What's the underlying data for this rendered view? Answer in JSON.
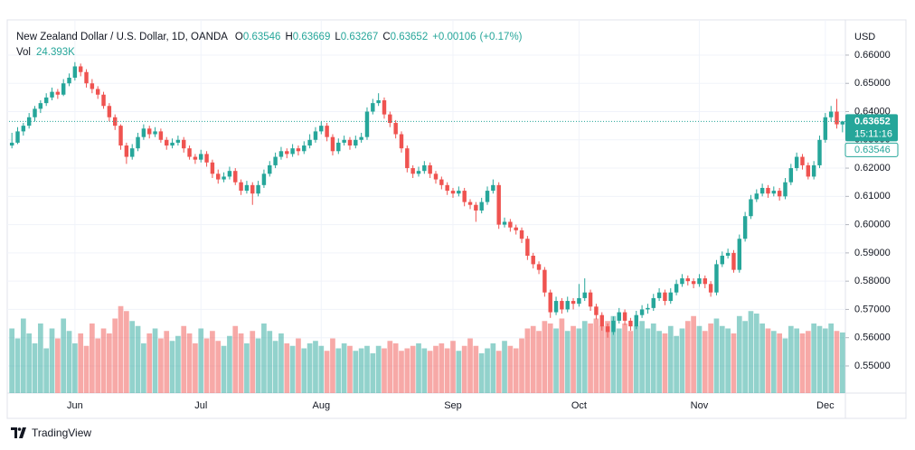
{
  "chart_data": {
    "type": "candlestick",
    "title": "New Zealand Dollar / U.S. Dollar, 1D, OANDA",
    "legend": [
      {
        "label": "O",
        "value": 0.63546
      },
      {
        "label": "H",
        "value": 0.63669
      },
      {
        "label": "L",
        "value": 0.63267
      },
      {
        "label": "C",
        "value": 0.63652
      }
    ],
    "change": 0.00106,
    "change_label": "+0.00106",
    "change_pct": 0.17,
    "change_pct_label": "(+0.17%)",
    "volume_name": "Vol",
    "volume_value_label": "24.393K",
    "y_axis_label": "USD",
    "up_color": "#26a69a",
    "down_color": "#ef5350",
    "ohlc": [
      [
        0.628,
        0.6325,
        0.627,
        0.629
      ],
      [
        0.629,
        0.6345,
        0.6285,
        0.633
      ],
      [
        0.633,
        0.636,
        0.6315,
        0.635
      ],
      [
        0.635,
        0.6395,
        0.634,
        0.638
      ],
      [
        0.638,
        0.642,
        0.6365,
        0.641
      ],
      [
        0.641,
        0.644,
        0.6395,
        0.643
      ],
      [
        0.643,
        0.6465,
        0.642,
        0.645
      ],
      [
        0.645,
        0.6485,
        0.644,
        0.647
      ],
      [
        0.647,
        0.648,
        0.6445,
        0.646
      ],
      [
        0.646,
        0.6515,
        0.6455,
        0.65
      ],
      [
        0.65,
        0.6535,
        0.649,
        0.652
      ],
      [
        0.652,
        0.6575,
        0.651,
        0.656
      ],
      [
        0.656,
        0.657,
        0.6525,
        0.654
      ],
      [
        0.654,
        0.655,
        0.6485,
        0.65
      ],
      [
        0.65,
        0.6515,
        0.6465,
        0.648
      ],
      [
        0.648,
        0.649,
        0.6445,
        0.646
      ],
      [
        0.646,
        0.647,
        0.641,
        0.642
      ],
      [
        0.642,
        0.643,
        0.6365,
        0.638
      ],
      [
        0.638,
        0.639,
        0.6335,
        0.635
      ],
      [
        0.635,
        0.6355,
        0.6265,
        0.628
      ],
      [
        0.628,
        0.629,
        0.6215,
        0.624
      ],
      [
        0.624,
        0.6285,
        0.623,
        0.627
      ],
      [
        0.627,
        0.6325,
        0.626,
        0.631
      ],
      [
        0.631,
        0.6355,
        0.63,
        0.634
      ],
      [
        0.634,
        0.635,
        0.6305,
        0.632
      ],
      [
        0.632,
        0.6345,
        0.631,
        0.633
      ],
      [
        0.633,
        0.634,
        0.629,
        0.63
      ],
      [
        0.63,
        0.631,
        0.6265,
        0.628
      ],
      [
        0.628,
        0.6305,
        0.627,
        0.629
      ],
      [
        0.629,
        0.6315,
        0.628,
        0.63
      ],
      [
        0.63,
        0.631,
        0.6255,
        0.627
      ],
      [
        0.627,
        0.628,
        0.623,
        0.624
      ],
      [
        0.624,
        0.625,
        0.6215,
        0.623
      ],
      [
        0.623,
        0.6265,
        0.622,
        0.625
      ],
      [
        0.625,
        0.626,
        0.6205,
        0.622
      ],
      [
        0.622,
        0.623,
        0.6165,
        0.618
      ],
      [
        0.618,
        0.6195,
        0.6145,
        0.616
      ],
      [
        0.616,
        0.6185,
        0.615,
        0.617
      ],
      [
        0.617,
        0.6205,
        0.616,
        0.619
      ],
      [
        0.619,
        0.62,
        0.614,
        0.615
      ],
      [
        0.615,
        0.616,
        0.6105,
        0.612
      ],
      [
        0.612,
        0.6155,
        0.611,
        0.614
      ],
      [
        0.614,
        0.615,
        0.607,
        0.611
      ],
      [
        0.611,
        0.6155,
        0.61,
        0.614
      ],
      [
        0.614,
        0.6195,
        0.613,
        0.618
      ],
      [
        0.618,
        0.6225,
        0.617,
        0.621
      ],
      [
        0.621,
        0.6255,
        0.62,
        0.624
      ],
      [
        0.624,
        0.6275,
        0.623,
        0.626
      ],
      [
        0.626,
        0.627,
        0.6235,
        0.625
      ],
      [
        0.625,
        0.6285,
        0.624,
        0.627
      ],
      [
        0.627,
        0.628,
        0.6245,
        0.626
      ],
      [
        0.626,
        0.6295,
        0.625,
        0.628
      ],
      [
        0.628,
        0.632,
        0.627,
        0.63
      ],
      [
        0.63,
        0.6345,
        0.629,
        0.633
      ],
      [
        0.633,
        0.6365,
        0.632,
        0.635
      ],
      [
        0.635,
        0.636,
        0.6295,
        0.631
      ],
      [
        0.631,
        0.632,
        0.6245,
        0.626
      ],
      [
        0.626,
        0.6305,
        0.625,
        0.629
      ],
      [
        0.629,
        0.6315,
        0.628,
        0.63
      ],
      [
        0.63,
        0.631,
        0.6265,
        0.628
      ],
      [
        0.628,
        0.6315,
        0.627,
        0.63
      ],
      [
        0.63,
        0.6325,
        0.629,
        0.631
      ],
      [
        0.631,
        0.6415,
        0.63,
        0.64
      ],
      [
        0.64,
        0.6445,
        0.639,
        0.643
      ],
      [
        0.643,
        0.6465,
        0.642,
        0.644
      ],
      [
        0.644,
        0.645,
        0.6375,
        0.639
      ],
      [
        0.639,
        0.64,
        0.6345,
        0.636
      ],
      [
        0.636,
        0.637,
        0.6305,
        0.632
      ],
      [
        0.632,
        0.633,
        0.6255,
        0.627
      ],
      [
        0.627,
        0.628,
        0.6185,
        0.62
      ],
      [
        0.62,
        0.621,
        0.6165,
        0.618
      ],
      [
        0.618,
        0.6205,
        0.617,
        0.619
      ],
      [
        0.619,
        0.6225,
        0.618,
        0.621
      ],
      [
        0.621,
        0.622,
        0.6165,
        0.618
      ],
      [
        0.618,
        0.619,
        0.6145,
        0.616
      ],
      [
        0.616,
        0.617,
        0.6125,
        0.614
      ],
      [
        0.614,
        0.615,
        0.6105,
        0.612
      ],
      [
        0.612,
        0.613,
        0.6095,
        0.611
      ],
      [
        0.611,
        0.6135,
        0.61,
        0.612
      ],
      [
        0.612,
        0.613,
        0.6065,
        0.608
      ],
      [
        0.608,
        0.609,
        0.6055,
        0.607
      ],
      [
        0.607,
        0.608,
        0.601,
        0.605
      ],
      [
        0.605,
        0.6095,
        0.604,
        0.608
      ],
      [
        0.608,
        0.6135,
        0.607,
        0.612
      ],
      [
        0.612,
        0.616,
        0.611,
        0.614
      ],
      [
        0.614,
        0.615,
        0.5985,
        0.6
      ],
      [
        0.6,
        0.6025,
        0.599,
        0.601
      ],
      [
        0.601,
        0.602,
        0.5975,
        0.599
      ],
      [
        0.599,
        0.6,
        0.5965,
        0.598
      ],
      [
        0.598,
        0.599,
        0.5935,
        0.595
      ],
      [
        0.595,
        0.596,
        0.5875,
        0.589
      ],
      [
        0.589,
        0.59,
        0.5845,
        0.586
      ],
      [
        0.586,
        0.587,
        0.5825,
        0.584
      ],
      [
        0.584,
        0.585,
        0.5745,
        0.576
      ],
      [
        0.576,
        0.577,
        0.567,
        0.569
      ],
      [
        0.569,
        0.5745,
        0.568,
        0.573
      ],
      [
        0.573,
        0.574,
        0.5685,
        0.57
      ],
      [
        0.57,
        0.5745,
        0.569,
        0.573
      ],
      [
        0.573,
        0.574,
        0.57,
        0.572
      ],
      [
        0.572,
        0.579,
        0.571,
        0.574
      ],
      [
        0.574,
        0.581,
        0.573,
        0.576
      ],
      [
        0.576,
        0.577,
        0.5695,
        0.571
      ],
      [
        0.571,
        0.572,
        0.5665,
        0.568
      ],
      [
        0.568,
        0.569,
        0.5625,
        0.564
      ],
      [
        0.564,
        0.565,
        0.56,
        0.562
      ],
      [
        0.562,
        0.5675,
        0.561,
        0.566
      ],
      [
        0.566,
        0.5705,
        0.565,
        0.569
      ],
      [
        0.569,
        0.57,
        0.5645,
        0.566
      ],
      [
        0.566,
        0.567,
        0.5625,
        0.564
      ],
      [
        0.564,
        0.5695,
        0.563,
        0.568
      ],
      [
        0.568,
        0.5715,
        0.567,
        0.57
      ],
      [
        0.57,
        0.572,
        0.5685,
        0.5705
      ],
      [
        0.5705,
        0.5755,
        0.5695,
        0.574
      ],
      [
        0.574,
        0.5775,
        0.573,
        0.576
      ],
      [
        0.576,
        0.577,
        0.5715,
        0.573
      ],
      [
        0.573,
        0.5775,
        0.572,
        0.576
      ],
      [
        0.576,
        0.5805,
        0.575,
        0.579
      ],
      [
        0.579,
        0.5825,
        0.578,
        0.581
      ],
      [
        0.581,
        0.582,
        0.5785,
        0.58
      ],
      [
        0.58,
        0.581,
        0.5775,
        0.579
      ],
      [
        0.579,
        0.5825,
        0.578,
        0.581
      ],
      [
        0.581,
        0.582,
        0.5775,
        0.579
      ],
      [
        0.579,
        0.58,
        0.5745,
        0.576
      ],
      [
        0.576,
        0.5875,
        0.575,
        0.586
      ],
      [
        0.586,
        0.5905,
        0.585,
        0.589
      ],
      [
        0.589,
        0.5915,
        0.588,
        0.59
      ],
      [
        0.59,
        0.591,
        0.583,
        0.584
      ],
      [
        0.584,
        0.5965,
        0.583,
        0.595
      ],
      [
        0.595,
        0.6045,
        0.594,
        0.603
      ],
      [
        0.603,
        0.6105,
        0.602,
        0.609
      ],
      [
        0.609,
        0.6125,
        0.608,
        0.611
      ],
      [
        0.611,
        0.6145,
        0.61,
        0.613
      ],
      [
        0.613,
        0.614,
        0.6095,
        0.611
      ],
      [
        0.611,
        0.6135,
        0.61,
        0.612
      ],
      [
        0.612,
        0.613,
        0.6085,
        0.61
      ],
      [
        0.61,
        0.6165,
        0.609,
        0.615
      ],
      [
        0.615,
        0.6215,
        0.614,
        0.62
      ],
      [
        0.62,
        0.6255,
        0.619,
        0.624
      ],
      [
        0.624,
        0.625,
        0.6195,
        0.621
      ],
      [
        0.621,
        0.622,
        0.616,
        0.617
      ],
      [
        0.617,
        0.6225,
        0.616,
        0.621
      ],
      [
        0.621,
        0.6315,
        0.62,
        0.63
      ],
      [
        0.63,
        0.6395,
        0.629,
        0.638
      ],
      [
        0.638,
        0.642,
        0.6365,
        0.64
      ],
      [
        0.64,
        0.6445,
        0.634,
        0.6355
      ],
      [
        0.63546,
        0.63669,
        0.63267,
        0.63652
      ]
    ],
    "volume": [
      26,
      22,
      30,
      24,
      20,
      28,
      18,
      26,
      22,
      30,
      25,
      20,
      24,
      19,
      28,
      22,
      26,
      24,
      30,
      35,
      33,
      29,
      27,
      20,
      24,
      26,
      22,
      25,
      21,
      23,
      27,
      24,
      20,
      26,
      22,
      25,
      21,
      19,
      23,
      27,
      24,
      20,
      25,
      22,
      28,
      25,
      21,
      24,
      20,
      19,
      22,
      18,
      20,
      21,
      19,
      17,
      22,
      18,
      20,
      19,
      17,
      18,
      19,
      16,
      19,
      18,
      21,
      20,
      17,
      18,
      19,
      20,
      18,
      17,
      19,
      20,
      18,
      21,
      17,
      19,
      22,
      19,
      16,
      18,
      20,
      17,
      21,
      19,
      18,
      22,
      26,
      27,
      25,
      29,
      28,
      26,
      30,
      25,
      27,
      26,
      29,
      28,
      30,
      27,
      29,
      31,
      26,
      28,
      25,
      27,
      29,
      26,
      28,
      25,
      24,
      27,
      23,
      26,
      29,
      31,
      27,
      25,
      28,
      30,
      27,
      26,
      24,
      31,
      29,
      33,
      32,
      28,
      26,
      25,
      24,
      22,
      27,
      26,
      24,
      25,
      28,
      27,
      26,
      28,
      25,
      24.393
    ],
    "xticks": [
      {
        "value": 11,
        "label": "Jun"
      },
      {
        "value": 33,
        "label": "Jul"
      },
      {
        "value": 54,
        "label": "Aug"
      },
      {
        "value": 77,
        "label": "Sep"
      },
      {
        "value": 99,
        "label": "Oct"
      },
      {
        "value": 120,
        "label": "Nov"
      },
      {
        "value": 142,
        "label": "Dec"
      }
    ],
    "ylim": [
      0.5404,
      0.6699
    ],
    "yticks": [
      {
        "value": 0.55,
        "label": "0.55000"
      },
      {
        "value": 0.56,
        "label": "0.56000"
      },
      {
        "value": 0.57,
        "label": "0.57000"
      },
      {
        "value": 0.58,
        "label": "0.58000"
      },
      {
        "value": 0.59,
        "label": "0.59000"
      },
      {
        "value": 0.6,
        "label": "0.60000"
      },
      {
        "value": 0.61,
        "label": "0.61000"
      },
      {
        "value": 0.62,
        "label": "0.62000"
      },
      {
        "value": 0.63,
        "label": "0.63000"
      },
      {
        "value": 0.64,
        "label": "0.64000"
      },
      {
        "value": 0.65,
        "label": "0.65000"
      },
      {
        "value": 0.66,
        "label": "0.66000"
      }
    ],
    "grid": true,
    "last_price": 0.63652,
    "last_price_time_label": "15:11:16",
    "open_price": 0.63546,
    "brand": "TradingView"
  }
}
